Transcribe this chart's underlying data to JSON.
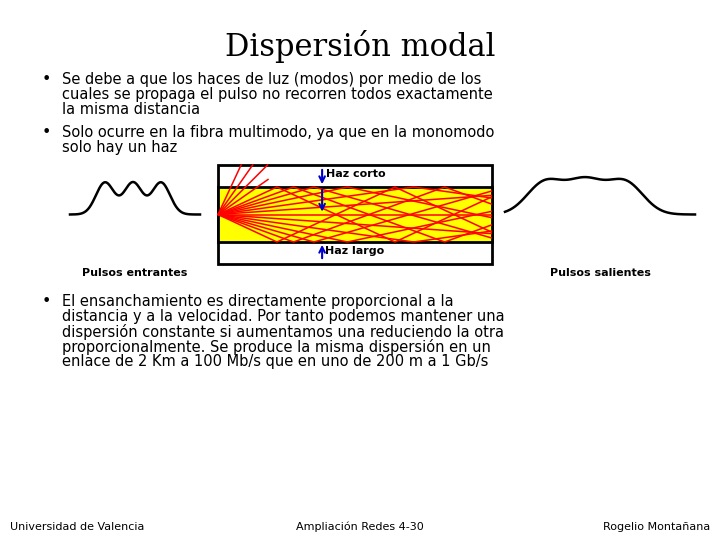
{
  "title": "Dispersión modal",
  "title_fontsize": 22,
  "title_font": "serif",
  "bg_color": "#ffffff",
  "text_color": "#000000",
  "bullet1_line1": "Se debe a que los haces de luz (modos) por medio de los",
  "bullet1_line2": "cuales se propaga el pulso no recorren todos exactamente",
  "bullet1_line3": "la misma distancia",
  "bullet2_line1": "Solo ocurre en la fibra multimodo, ya que en la monomodo",
  "bullet2_line2": "solo hay un haz",
  "bullet3_line1": "El ensanchamiento es directamente proporcional a la",
  "bullet3_line2": "distancia y a la velocidad. Por tanto podemos mantener una",
  "bullet3_line3": "dispersión constante si aumentamos una reduciendo la otra",
  "bullet3_line4": "proporcionalmente. Se produce la misma dispersión en un",
  "bullet3_line5": "enlace de 2 Km a 100 Mb/s que en uno de 200 m a 1 Gb/s",
  "footer_left": "Universidad de Valencia",
  "footer_center": "Ampliación Redes 4-30",
  "footer_right": "Rogelio Montañana",
  "footer_fontsize": 8,
  "body_fontsize": 10.5,
  "label_fontsize": 8,
  "pulsos_entrantes": "Pulsos entrantes",
  "pulsos_salientes": "Pulsos salientes",
  "haz_corto": "Haz corto",
  "haz_largo": "Haz largo",
  "fiber_color": "#ffff00",
  "fiber_border": "#000000",
  "ray_color": "#ff0000",
  "arrow_color": "#0000cc"
}
